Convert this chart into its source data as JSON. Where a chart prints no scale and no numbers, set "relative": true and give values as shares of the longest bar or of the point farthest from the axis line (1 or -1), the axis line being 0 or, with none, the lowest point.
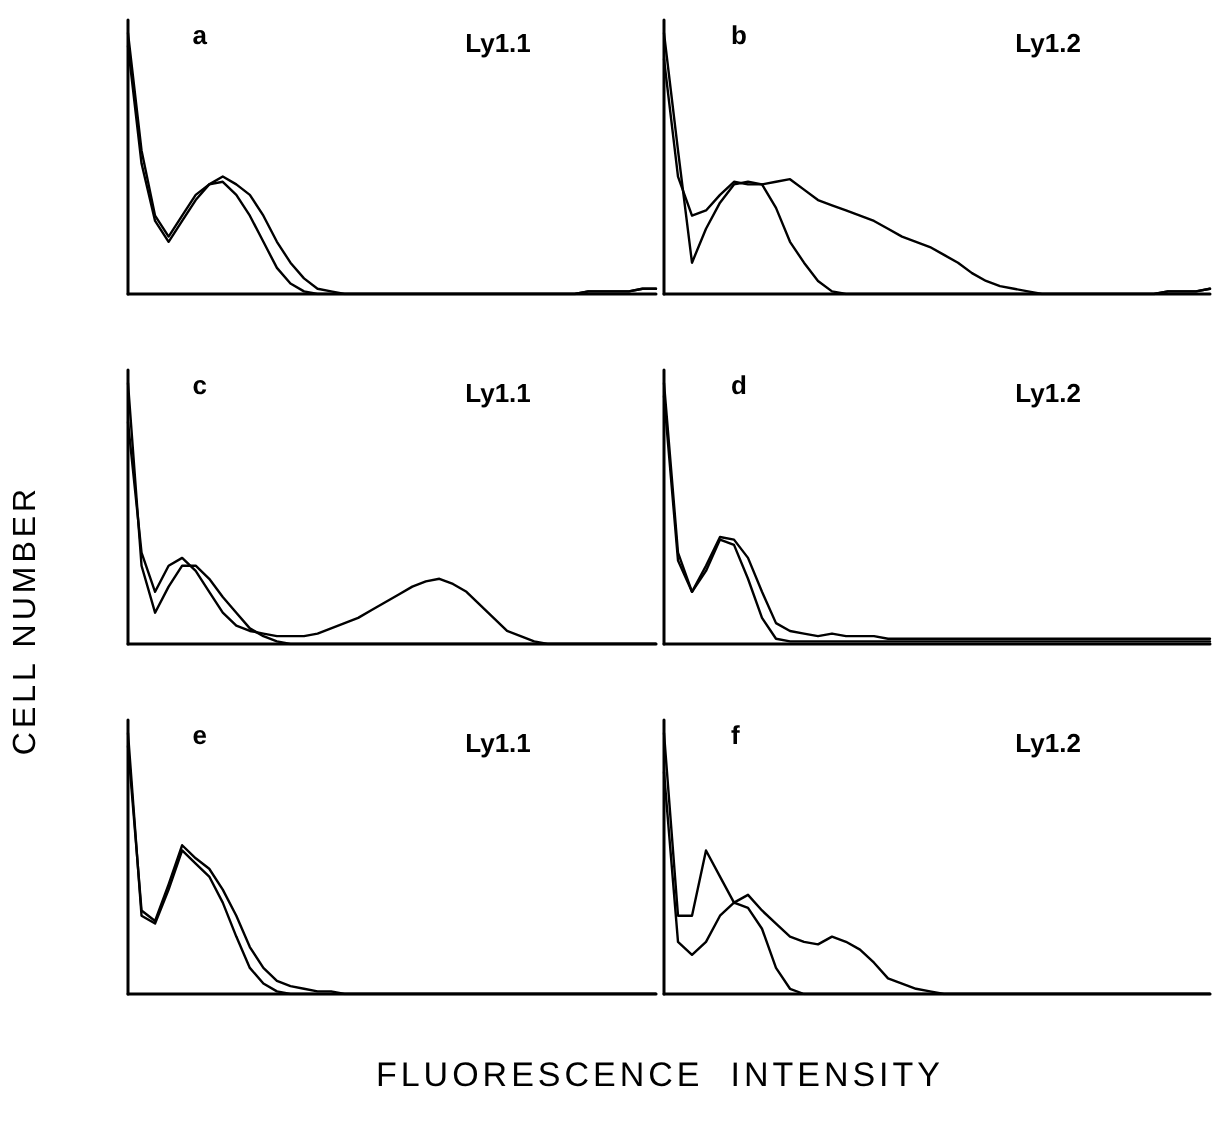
{
  "chart_data": [
    {
      "type": "line",
      "title": "a",
      "subtitle": "Ly1.1",
      "relative": true,
      "grid": false,
      "line_style": "solid",
      "categories": [
        null,
        null,
        null,
        null,
        null,
        null,
        null,
        null,
        null,
        null,
        null,
        null,
        null,
        null,
        null,
        null,
        null,
        null,
        null,
        null,
        null,
        null,
        null,
        null,
        null,
        null,
        null,
        null,
        null,
        null,
        null,
        null,
        null,
        null,
        null,
        null,
        null,
        null,
        null,
        null
      ],
      "series": [
        {
          "color": "#000000",
          "values": [
            1.0,
            0.55,
            0.3,
            0.22,
            0.3,
            0.38,
            0.42,
            0.43,
            0.38,
            0.3,
            0.2,
            0.1,
            0.04,
            0.01,
            0,
            0,
            0,
            0,
            0,
            0,
            0,
            0,
            0,
            0,
            0,
            0,
            0,
            0,
            0,
            0,
            0,
            0,
            0,
            0,
            0.01,
            0.01,
            0.01,
            0.01,
            0.02,
            0.02
          ]
        },
        {
          "color": "#000000",
          "values": [
            0.95,
            0.5,
            0.28,
            0.2,
            0.28,
            0.36,
            0.42,
            0.45,
            0.42,
            0.38,
            0.3,
            0.2,
            0.12,
            0.06,
            0.02,
            0.01,
            0,
            0,
            0,
            0,
            0,
            0,
            0,
            0,
            0,
            0,
            0,
            0,
            0,
            0,
            0,
            0,
            0,
            0,
            0.01,
            0.01,
            0.01,
            0.01,
            0.02,
            0.02
          ]
        }
      ]
    },
    {
      "type": "line",
      "title": "b",
      "subtitle": "Ly1.2",
      "relative": true,
      "grid": false,
      "line_style": "solid",
      "categories": [
        null,
        null,
        null,
        null,
        null,
        null,
        null,
        null,
        null,
        null,
        null,
        null,
        null,
        null,
        null,
        null,
        null,
        null,
        null,
        null,
        null,
        null,
        null,
        null,
        null,
        null,
        null,
        null,
        null,
        null,
        null,
        null,
        null,
        null,
        null,
        null,
        null,
        null,
        null,
        null
      ],
      "series": [
        {
          "color": "#000000",
          "values": [
            1.0,
            0.55,
            0.12,
            0.25,
            0.35,
            0.42,
            0.43,
            0.42,
            0.33,
            0.2,
            0.12,
            0.05,
            0.01,
            0,
            0,
            0,
            0,
            0,
            0,
            0,
            0,
            0,
            0,
            0,
            0,
            0,
            0,
            0,
            0,
            0,
            0,
            0,
            0,
            0,
            0,
            0,
            0.01,
            0.01,
            0.01,
            0.02
          ]
        },
        {
          "color": "#000000",
          "values": [
            0.9,
            0.45,
            0.3,
            0.32,
            0.38,
            0.43,
            0.42,
            0.42,
            0.43,
            0.44,
            0.4,
            0.36,
            0.34,
            0.32,
            0.3,
            0.28,
            0.25,
            0.22,
            0.2,
            0.18,
            0.15,
            0.12,
            0.08,
            0.05,
            0.03,
            0.02,
            0.01,
            0,
            0,
            0,
            0,
            0,
            0,
            0,
            0,
            0,
            0.01,
            0.01,
            0.01,
            0.02
          ]
        }
      ]
    },
    {
      "type": "line",
      "title": "c",
      "subtitle": "Ly1.1",
      "ylabel": "CELL NUMBER",
      "relative": true,
      "grid": false,
      "line_style": "solid",
      "categories": [
        null,
        null,
        null,
        null,
        null,
        null,
        null,
        null,
        null,
        null,
        null,
        null,
        null,
        null,
        null,
        null,
        null,
        null,
        null,
        null,
        null,
        null,
        null,
        null,
        null,
        null,
        null,
        null,
        null,
        null,
        null,
        null,
        null,
        null,
        null,
        null,
        null,
        null,
        null,
        null
      ],
      "series": [
        {
          "color": "#000000",
          "values": [
            1.0,
            0.3,
            0.12,
            0.22,
            0.3,
            0.3,
            0.25,
            0.18,
            0.12,
            0.06,
            0.03,
            0.01,
            0,
            0,
            0,
            0,
            0,
            0,
            0,
            0,
            0,
            0,
            0,
            0,
            0,
            0,
            0,
            0,
            0,
            0,
            0,
            0,
            0,
            0,
            0,
            0,
            0,
            0,
            0,
            0
          ]
        },
        {
          "color": "#000000",
          "values": [
            0.85,
            0.35,
            0.2,
            0.3,
            0.33,
            0.28,
            0.2,
            0.12,
            0.07,
            0.05,
            0.04,
            0.03,
            0.03,
            0.03,
            0.04,
            0.06,
            0.08,
            0.1,
            0.13,
            0.16,
            0.19,
            0.22,
            0.24,
            0.25,
            0.23,
            0.2,
            0.15,
            0.1,
            0.05,
            0.03,
            0.01,
            0,
            0,
            0,
            0,
            0,
            0,
            0,
            0,
            0
          ]
        }
      ]
    },
    {
      "type": "line",
      "title": "d",
      "subtitle": "Ly1.2",
      "relative": true,
      "grid": false,
      "line_style": "solid",
      "categories": [
        null,
        null,
        null,
        null,
        null,
        null,
        null,
        null,
        null,
        null,
        null,
        null,
        null,
        null,
        null,
        null,
        null,
        null,
        null,
        null,
        null,
        null,
        null,
        null,
        null,
        null,
        null,
        null,
        null,
        null,
        null,
        null,
        null,
        null,
        null,
        null,
        null,
        null,
        null,
        null
      ],
      "series": [
        {
          "color": "#000000",
          "values": [
            1.0,
            0.35,
            0.2,
            0.28,
            0.4,
            0.38,
            0.25,
            0.1,
            0.02,
            0.01,
            0.01,
            0.01,
            0.01,
            0.01,
            0.01,
            0.01,
            0.01,
            0.01,
            0.01,
            0.01,
            0.01,
            0.01,
            0.01,
            0.01,
            0.01,
            0.01,
            0.01,
            0.01,
            0.01,
            0.01,
            0.01,
            0.01,
            0.01,
            0.01,
            0.01,
            0.01,
            0.01,
            0.01,
            0.01,
            0.01
          ]
        },
        {
          "color": "#000000",
          "values": [
            0.95,
            0.32,
            0.2,
            0.3,
            0.41,
            0.4,
            0.33,
            0.2,
            0.08,
            0.05,
            0.04,
            0.03,
            0.04,
            0.03,
            0.03,
            0.03,
            0.02,
            0.02,
            0.02,
            0.02,
            0.02,
            0.02,
            0.02,
            0.02,
            0.02,
            0.02,
            0.02,
            0.02,
            0.02,
            0.02,
            0.02,
            0.02,
            0.02,
            0.02,
            0.02,
            0.02,
            0.02,
            0.02,
            0.02,
            0.02
          ]
        }
      ]
    },
    {
      "type": "line",
      "title": "e",
      "subtitle": "Ly1.1",
      "xlabel": "FLUORESCENCE  INTENSITY",
      "relative": true,
      "grid": false,
      "line_style": "solid",
      "categories": [
        null,
        null,
        null,
        null,
        null,
        null,
        null,
        null,
        null,
        null,
        null,
        null,
        null,
        null,
        null,
        null,
        null,
        null,
        null,
        null,
        null,
        null,
        null,
        null,
        null,
        null,
        null,
        null,
        null,
        null,
        null,
        null,
        null,
        null,
        null,
        null,
        null,
        null,
        null,
        null
      ],
      "series": [
        {
          "color": "#000000",
          "values": [
            1.0,
            0.3,
            0.27,
            0.4,
            0.55,
            0.5,
            0.45,
            0.35,
            0.22,
            0.1,
            0.04,
            0.01,
            0,
            0,
            0,
            0,
            0,
            0,
            0,
            0,
            0,
            0,
            0,
            0,
            0,
            0,
            0,
            0,
            0,
            0,
            0,
            0,
            0,
            0,
            0,
            0,
            0,
            0,
            0,
            0
          ]
        },
        {
          "color": "#000000",
          "values": [
            0.95,
            0.32,
            0.28,
            0.42,
            0.57,
            0.52,
            0.48,
            0.4,
            0.3,
            0.18,
            0.1,
            0.05,
            0.03,
            0.02,
            0.01,
            0.01,
            0,
            0,
            0,
            0,
            0,
            0,
            0,
            0,
            0,
            0,
            0,
            0,
            0,
            0,
            0,
            0,
            0,
            0,
            0,
            0,
            0,
            0,
            0,
            0
          ]
        }
      ]
    },
    {
      "type": "line",
      "title": "f",
      "subtitle": "Ly1.2",
      "relative": true,
      "grid": false,
      "line_style": "solid",
      "categories": [
        null,
        null,
        null,
        null,
        null,
        null,
        null,
        null,
        null,
        null,
        null,
        null,
        null,
        null,
        null,
        null,
        null,
        null,
        null,
        null,
        null,
        null,
        null,
        null,
        null,
        null,
        null,
        null,
        null,
        null,
        null,
        null,
        null,
        null,
        null,
        null,
        null,
        null,
        null,
        null
      ],
      "series": [
        {
          "color": "#000000",
          "values": [
            0.85,
            0.2,
            0.15,
            0.2,
            0.3,
            0.35,
            0.33,
            0.25,
            0.1,
            0.02,
            0,
            0,
            0,
            0,
            0,
            0,
            0,
            0,
            0,
            0,
            0,
            0,
            0,
            0,
            0,
            0,
            0,
            0,
            0,
            0,
            0,
            0,
            0,
            0,
            0,
            0,
            0,
            0,
            0,
            0
          ]
        },
        {
          "color": "#000000",
          "values": [
            1.0,
            0.3,
            0.3,
            0.55,
            0.45,
            0.35,
            0.38,
            0.32,
            0.27,
            0.22,
            0.2,
            0.19,
            0.22,
            0.2,
            0.17,
            0.12,
            0.06,
            0.04,
            0.02,
            0.01,
            0,
            0,
            0,
            0,
            0,
            0,
            0,
            0,
            0,
            0,
            0,
            0,
            0,
            0,
            0,
            0,
            0,
            0,
            0,
            0
          ]
        }
      ]
    }
  ]
}
